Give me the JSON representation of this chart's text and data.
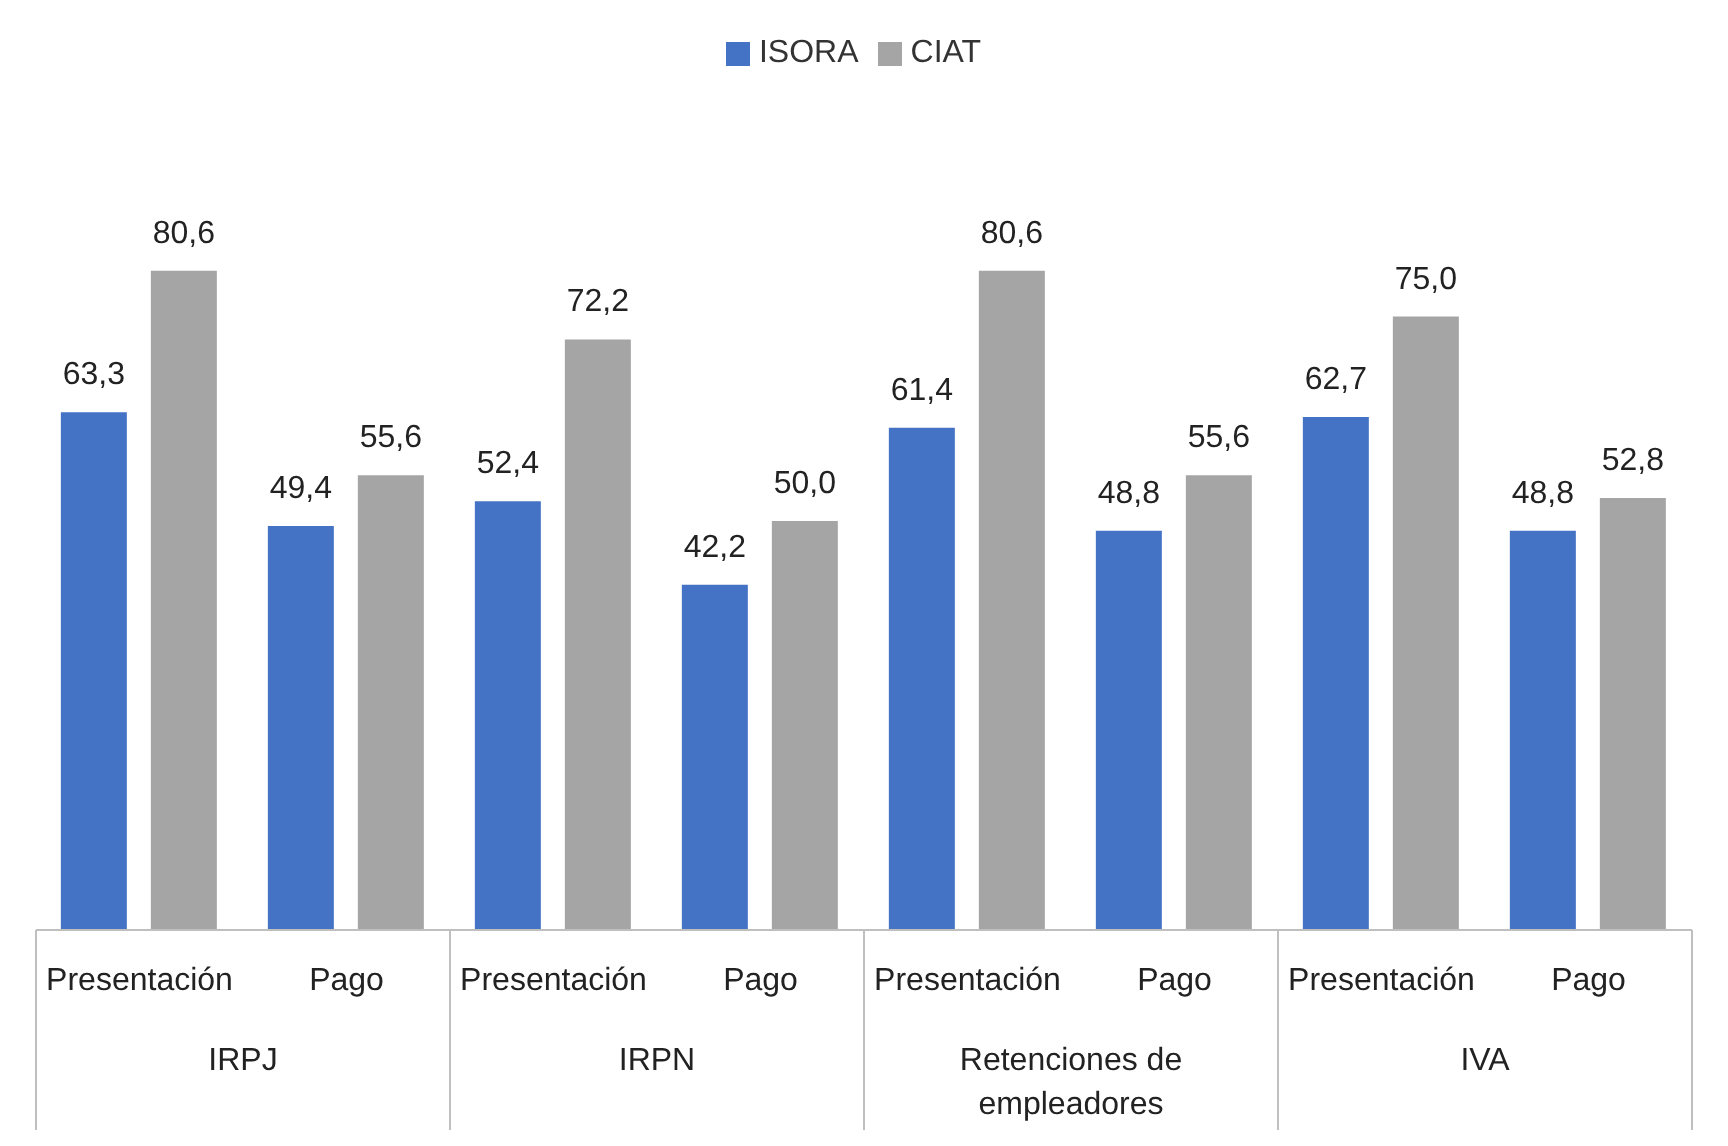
{
  "chart_data": {
    "type": "bar",
    "categories": [
      "Presentación",
      "Pago",
      "Presentación",
      "Pago",
      "Presentación",
      "Pago",
      "Presentación",
      "Pago"
    ],
    "annotations": [
      "IRPJ",
      "IRPN",
      "Retenciones de empleadores",
      "IVA"
    ],
    "series": [
      {
        "name": "ISORA",
        "color": "#4472c4",
        "values": [
          63.3,
          49.4,
          52.4,
          42.2,
          61.4,
          48.8,
          62.7,
          48.8
        ],
        "value_labels": [
          "63,3",
          "49,4",
          "52,4",
          "42,2",
          "61,4",
          "48,8",
          "62,7",
          "48,8"
        ]
      },
      {
        "name": "CIAT",
        "color": "#a5a5a5",
        "values": [
          80.6,
          55.6,
          72.2,
          50.0,
          80.6,
          55.6,
          75.0,
          52.8
        ],
        "value_labels": [
          "80,6",
          "55,6",
          "72,2",
          "50,0",
          "80,6",
          "55,6",
          "75,0",
          "52,8"
        ]
      }
    ],
    "legend": "top",
    "grid": false
  }
}
